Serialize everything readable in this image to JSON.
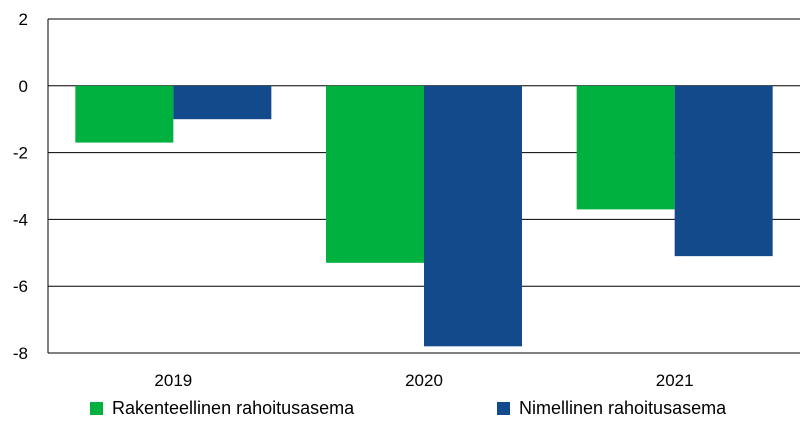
{
  "chart_data": {
    "type": "bar",
    "categories": [
      "2019",
      "2020",
      "2021"
    ],
    "series": [
      {
        "name": "Rakenteellinen rahoitusasema",
        "values": [
          -1.7,
          -5.3,
          -3.7
        ],
        "color": "#00b140"
      },
      {
        "name": "Nimellinen rahoitusasema",
        "values": [
          -1.0,
          -7.8,
          -5.1
        ],
        "color": "#124a8c"
      }
    ],
    "title": "",
    "xlabel": "",
    "ylabel": "",
    "ylim": [
      -8,
      2
    ],
    "yticks": [
      "2",
      "0",
      "-2",
      "-4",
      "-6",
      "-8"
    ],
    "grid": true,
    "legend_position": "bottom"
  }
}
